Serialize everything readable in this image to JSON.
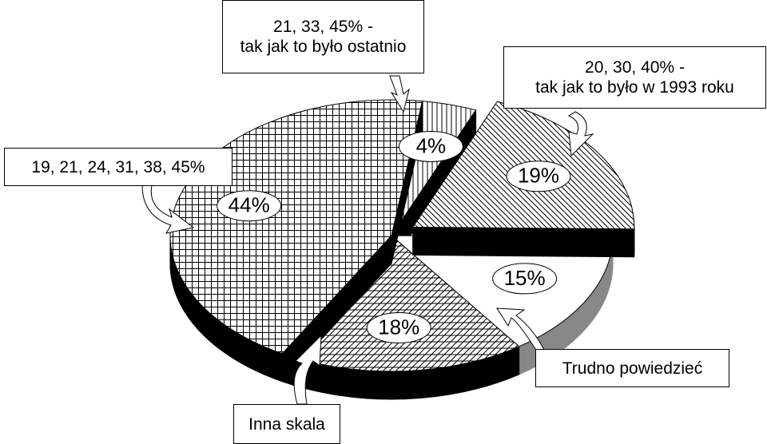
{
  "chart_data": {
    "type": "pie",
    "categories": [
      "21, 33, 45% -\ntak jak to było ostatnio",
      "20, 30, 40% -\ntak jak to było w 1993 roku",
      "Trudno powiedzieć",
      "Inna skala",
      "19, 21, 24, 31, 38, 45%"
    ],
    "values": [
      4,
      19,
      15,
      18,
      44
    ],
    "value_labels": [
      "4%",
      "19%",
      "15%",
      "18%",
      "44%"
    ],
    "side_colors": [
      "#000000",
      "#000000",
      "#888888",
      "#000000",
      "#000000"
    ]
  }
}
